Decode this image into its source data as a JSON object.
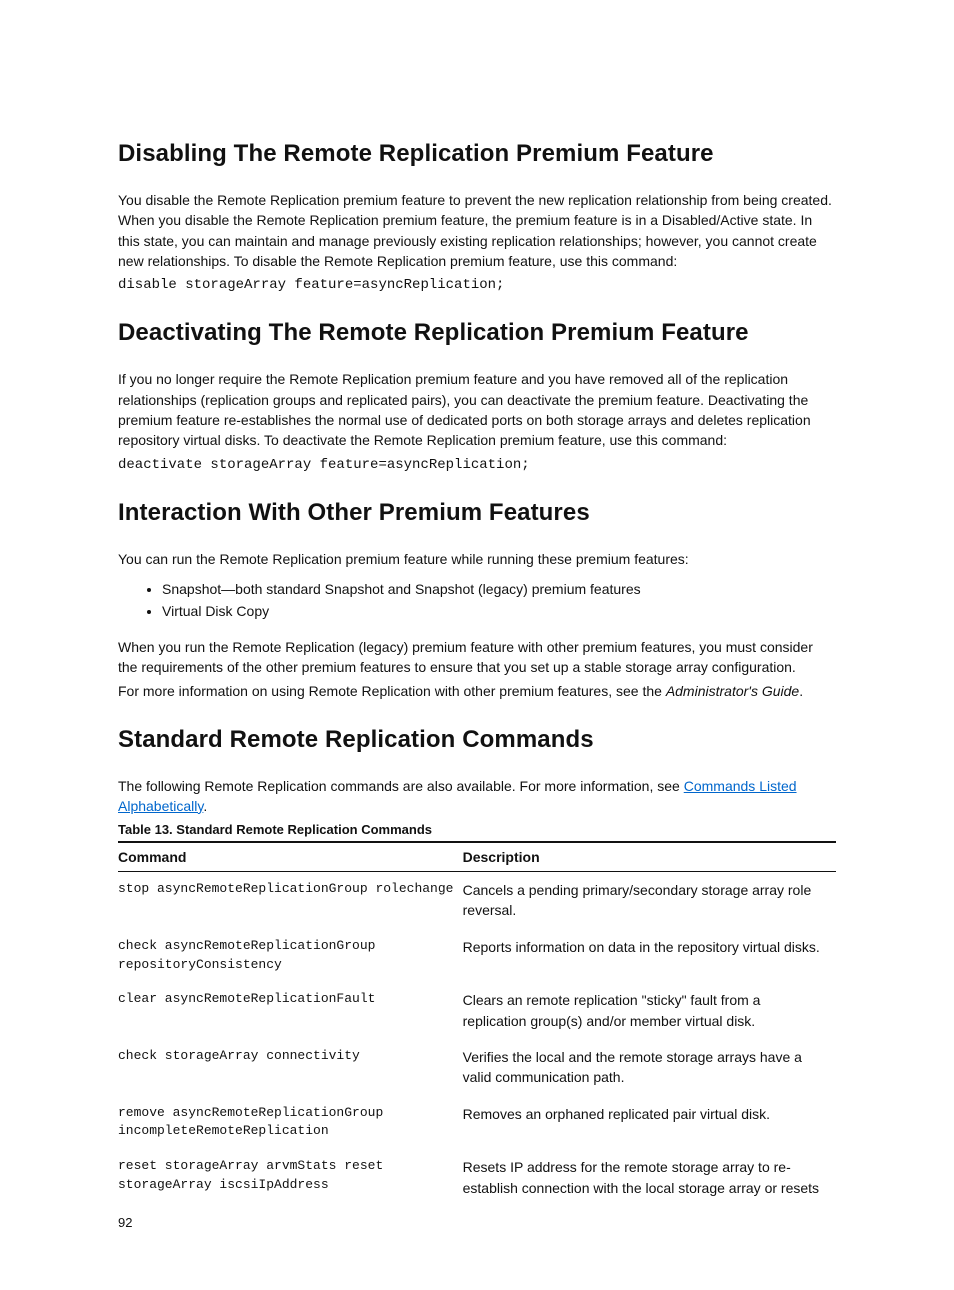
{
  "sections": {
    "disabling": {
      "title": "Disabling The Remote Replication Premium Feature",
      "para": "You disable the Remote Replication premium feature to prevent the new replication relationship from being created. When you disable the Remote Replication premium feature, the premium feature is in a Disabled/Active state. In this state, you can maintain and manage previously existing replication relationships; however, you cannot create new relationships. To disable the Remote Replication premium feature, use this command:",
      "code": "disable storageArray feature=asyncReplication;"
    },
    "deactivating": {
      "title": "Deactivating The Remote Replication Premium Feature",
      "para": "If you no longer require the Remote Replication premium feature and you have removed all of the replication relationships (replication groups and replicated pairs), you can deactivate the premium feature. Deactivating the premium feature re-establishes the normal use of dedicated ports on both storage arrays and deletes replication repository virtual disks. To deactivate the Remote Replication premium feature, use this command:",
      "code": "deactivate storageArray feature=asyncReplication;"
    },
    "interaction": {
      "title": "Interaction With Other Premium Features",
      "intro": "You can run the Remote Replication premium feature while running these premium features:",
      "bullets": [
        "Snapshot—both standard Snapshot and Snapshot (legacy) premium features",
        "Virtual Disk Copy"
      ],
      "para2": "When you run the Remote Replication (legacy) premium feature with other premium features, you must consider the requirements of the other premium features to ensure that you set up a stable storage array configuration.",
      "para3_prefix": "For more information on using Remote Replication with other premium features, see the ",
      "para3_italic": "Administrator's Guide",
      "para3_suffix": "."
    },
    "standard": {
      "title": "Standard Remote Replication Commands",
      "intro_prefix": "The following Remote Replication commands are also available. For more information, see ",
      "intro_link": "Commands Listed Alphabetically",
      "intro_suffix": ".",
      "table_caption": "Table 13. Standard Remote Replication Commands",
      "columns": [
        "Command",
        "Description"
      ],
      "rows": [
        {
          "cmd": "stop asyncRemoteReplicationGroup rolechange",
          "desc": "Cancels a pending primary/secondary storage array role reversal."
        },
        {
          "cmd": "check asyncRemoteReplicationGroup repositoryConsistency",
          "desc": "Reports information on data in the repository virtual disks."
        },
        {
          "cmd": "clear asyncRemoteReplicationFault",
          "desc": "Clears an remote replication \"sticky\" fault from a replication group(s) and/or member virtual disk."
        },
        {
          "cmd": "check storageArray connectivity",
          "desc": "Verifies the local and the remote storage arrays have a valid communication path."
        },
        {
          "cmd": "remove asyncRemoteReplicationGroup incompleteRemoteReplication",
          "desc": "Removes an orphaned replicated pair virtual disk."
        },
        {
          "cmd": "reset storageArray arvmStats reset storageArray iscsiIpAddress",
          "desc": "Resets IP address for the remote storage array to re-establish connection with the local storage array or resets"
        }
      ]
    }
  },
  "page_number": "92"
}
